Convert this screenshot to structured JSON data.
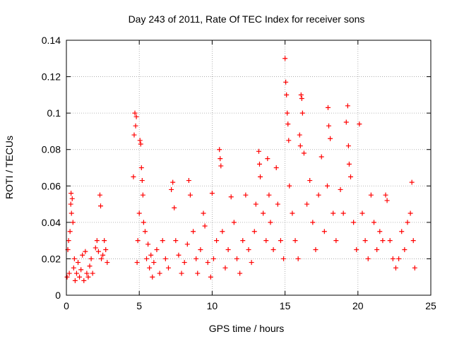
{
  "chart_data": {
    "type": "scatter",
    "title": "Day 243 of 2011, Rate Of TEC Index for receiver sons",
    "xlabel": "GPS time / hours",
    "ylabel": "ROTI / TECUs",
    "xlim": [
      0,
      25
    ],
    "ylim": [
      0,
      0.14
    ],
    "xticks": [
      0,
      5,
      10,
      15,
      20,
      25
    ],
    "xtick_labels": [
      "0",
      "5",
      "10",
      "15",
      "20",
      "25"
    ],
    "yticks": [
      0,
      0.02,
      0.04,
      0.06,
      0.08,
      0.1,
      0.12,
      0.14
    ],
    "ytick_labels": [
      "0",
      "0.02",
      "0.04",
      "0.06",
      "0.08",
      "0.1",
      "0.12",
      "0.14"
    ],
    "grid": true,
    "marker": "plus",
    "series": [
      {
        "name": "ROTI",
        "color": "#ff0000",
        "points": [
          [
            0.05,
            0.01
          ],
          [
            0.1,
            0.025
          ],
          [
            0.15,
            0.03
          ],
          [
            0.2,
            0.012
          ],
          [
            0.25,
            0.035
          ],
          [
            0.3,
            0.05
          ],
          [
            0.32,
            0.056
          ],
          [
            0.35,
            0.045
          ],
          [
            0.4,
            0.053
          ],
          [
            0.45,
            0.04
          ],
          [
            0.5,
            0.015
          ],
          [
            0.55,
            0.02
          ],
          [
            0.6,
            0.008
          ],
          [
            0.7,
            0.012
          ],
          [
            0.8,
            0.018
          ],
          [
            0.9,
            0.01
          ],
          [
            1.0,
            0.014
          ],
          [
            1.1,
            0.022
          ],
          [
            1.2,
            0.008
          ],
          [
            1.3,
            0.024
          ],
          [
            1.4,
            0.012
          ],
          [
            1.5,
            0.01
          ],
          [
            1.6,
            0.016
          ],
          [
            1.7,
            0.02
          ],
          [
            1.8,
            0.012
          ],
          [
            2.0,
            0.026
          ],
          [
            2.1,
            0.03
          ],
          [
            2.2,
            0.024
          ],
          [
            2.3,
            0.055
          ],
          [
            2.35,
            0.049
          ],
          [
            2.4,
            0.02
          ],
          [
            2.5,
            0.022
          ],
          [
            2.6,
            0.03
          ],
          [
            2.7,
            0.025
          ],
          [
            2.8,
            0.018
          ],
          [
            4.6,
            0.065
          ],
          [
            4.65,
            0.088
          ],
          [
            4.7,
            0.1
          ],
          [
            4.75,
            0.093
          ],
          [
            4.8,
            0.098
          ],
          [
            4.85,
            0.018
          ],
          [
            4.9,
            0.03
          ],
          [
            5.0,
            0.045
          ],
          [
            5.05,
            0.085
          ],
          [
            5.1,
            0.083
          ],
          [
            5.15,
            0.07
          ],
          [
            5.2,
            0.063
          ],
          [
            5.25,
            0.055
          ],
          [
            5.3,
            0.04
          ],
          [
            5.4,
            0.035
          ],
          [
            5.5,
            0.02
          ],
          [
            5.6,
            0.028
          ],
          [
            5.7,
            0.015
          ],
          [
            5.8,
            0.022
          ],
          [
            5.9,
            0.01
          ],
          [
            6.0,
            0.018
          ],
          [
            6.2,
            0.025
          ],
          [
            6.4,
            0.012
          ],
          [
            6.6,
            0.03
          ],
          [
            6.8,
            0.02
          ],
          [
            7.0,
            0.015
          ],
          [
            7.2,
            0.058
          ],
          [
            7.3,
            0.062
          ],
          [
            7.4,
            0.048
          ],
          [
            7.5,
            0.03
          ],
          [
            7.7,
            0.022
          ],
          [
            7.9,
            0.012
          ],
          [
            8.1,
            0.018
          ],
          [
            8.3,
            0.028
          ],
          [
            8.4,
            0.063
          ],
          [
            8.5,
            0.055
          ],
          [
            8.7,
            0.035
          ],
          [
            8.9,
            0.02
          ],
          [
            9.0,
            0.012
          ],
          [
            9.2,
            0.025
          ],
          [
            9.4,
            0.045
          ],
          [
            9.5,
            0.038
          ],
          [
            9.7,
            0.018
          ],
          [
            9.9,
            0.01
          ],
          [
            10.0,
            0.056
          ],
          [
            10.1,
            0.02
          ],
          [
            10.3,
            0.03
          ],
          [
            10.5,
            0.08
          ],
          [
            10.55,
            0.075
          ],
          [
            10.6,
            0.071
          ],
          [
            10.7,
            0.035
          ],
          [
            10.9,
            0.015
          ],
          [
            11.1,
            0.025
          ],
          [
            11.3,
            0.054
          ],
          [
            11.5,
            0.04
          ],
          [
            11.7,
            0.02
          ],
          [
            11.9,
            0.012
          ],
          [
            12.1,
            0.03
          ],
          [
            12.3,
            0.055
          ],
          [
            12.5,
            0.025
          ],
          [
            12.7,
            0.018
          ],
          [
            12.9,
            0.035
          ],
          [
            13.0,
            0.05
          ],
          [
            13.2,
            0.079
          ],
          [
            13.25,
            0.072
          ],
          [
            13.3,
            0.065
          ],
          [
            13.5,
            0.045
          ],
          [
            13.7,
            0.03
          ],
          [
            13.8,
            0.075
          ],
          [
            13.9,
            0.055
          ],
          [
            14.0,
            0.04
          ],
          [
            14.2,
            0.025
          ],
          [
            14.4,
            0.07
          ],
          [
            14.5,
            0.05
          ],
          [
            14.7,
            0.03
          ],
          [
            14.9,
            0.02
          ],
          [
            15.0,
            0.13
          ],
          [
            15.05,
            0.117
          ],
          [
            15.1,
            0.11
          ],
          [
            15.15,
            0.1
          ],
          [
            15.2,
            0.094
          ],
          [
            15.25,
            0.085
          ],
          [
            15.3,
            0.06
          ],
          [
            15.5,
            0.045
          ],
          [
            15.7,
            0.03
          ],
          [
            15.9,
            0.02
          ],
          [
            16.0,
            0.088
          ],
          [
            16.05,
            0.082
          ],
          [
            16.1,
            0.11
          ],
          [
            16.15,
            0.108
          ],
          [
            16.2,
            0.1
          ],
          [
            16.3,
            0.078
          ],
          [
            16.5,
            0.05
          ],
          [
            16.7,
            0.063
          ],
          [
            16.9,
            0.04
          ],
          [
            17.1,
            0.025
          ],
          [
            17.3,
            0.055
          ],
          [
            17.5,
            0.076
          ],
          [
            17.7,
            0.035
          ],
          [
            17.9,
            0.06
          ],
          [
            17.95,
            0.103
          ],
          [
            18.0,
            0.093
          ],
          [
            18.1,
            0.086
          ],
          [
            18.3,
            0.045
          ],
          [
            18.5,
            0.03
          ],
          [
            18.8,
            0.058
          ],
          [
            19.0,
            0.045
          ],
          [
            19.2,
            0.095
          ],
          [
            19.3,
            0.104
          ],
          [
            19.35,
            0.082
          ],
          [
            19.4,
            0.072
          ],
          [
            19.5,
            0.065
          ],
          [
            19.7,
            0.04
          ],
          [
            19.9,
            0.025
          ],
          [
            20.1,
            0.094
          ],
          [
            20.3,
            0.045
          ],
          [
            20.5,
            0.03
          ],
          [
            20.7,
            0.02
          ],
          [
            20.9,
            0.055
          ],
          [
            21.1,
            0.04
          ],
          [
            21.3,
            0.025
          ],
          [
            21.5,
            0.035
          ],
          [
            21.7,
            0.03
          ],
          [
            21.9,
            0.055
          ],
          [
            22.0,
            0.052
          ],
          [
            22.2,
            0.03
          ],
          [
            22.4,
            0.02
          ],
          [
            22.6,
            0.015
          ],
          [
            22.8,
            0.02
          ],
          [
            23.0,
            0.035
          ],
          [
            23.2,
            0.025
          ],
          [
            23.4,
            0.04
          ],
          [
            23.6,
            0.045
          ],
          [
            23.7,
            0.062
          ],
          [
            23.8,
            0.03
          ],
          [
            23.9,
            0.015
          ]
        ]
      }
    ]
  }
}
